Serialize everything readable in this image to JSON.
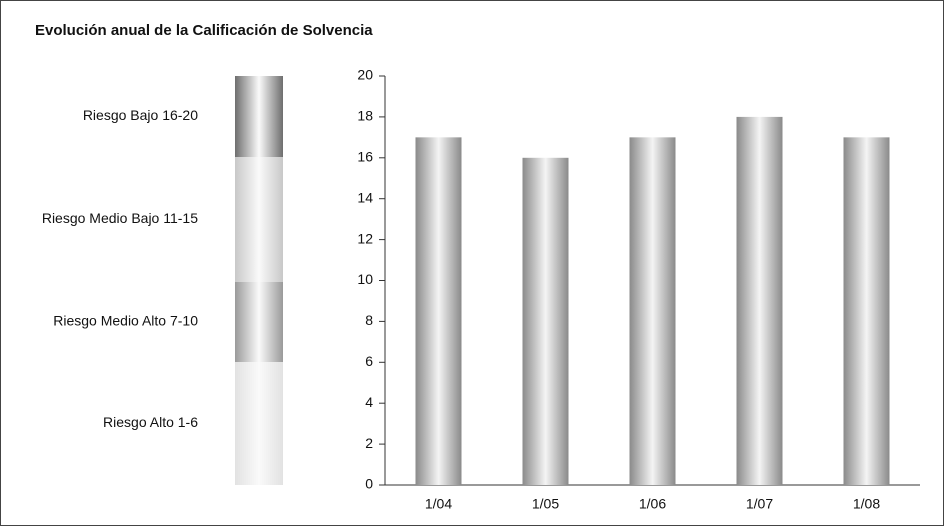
{
  "chart_data": {
    "type": "bar",
    "title": "Evolución anual de la Calificación de Solvencia",
    "categories": [
      "1/04",
      "1/05",
      "1/06",
      "1/07",
      "1/08"
    ],
    "values": [
      17,
      16,
      17,
      18,
      17
    ],
    "color": "#8c8c8c",
    "ylim": [
      0,
      20
    ],
    "yticks": [
      0,
      2,
      4,
      6,
      8,
      10,
      12,
      14,
      16,
      18,
      20
    ],
    "grid": false,
    "bands": [
      {
        "label": "Riesgo Bajo 16-20",
        "color": "#6e6e6e"
      },
      {
        "label": "Riesgo Medio Bajo 11-15",
        "color": "#c8c8c8"
      },
      {
        "label": "Riesgo Medio Alto 7-10",
        "color": "#9a9a9a"
      },
      {
        "label": "Riesgo Alto 1-6",
        "color": "#e2e2e2"
      }
    ]
  }
}
